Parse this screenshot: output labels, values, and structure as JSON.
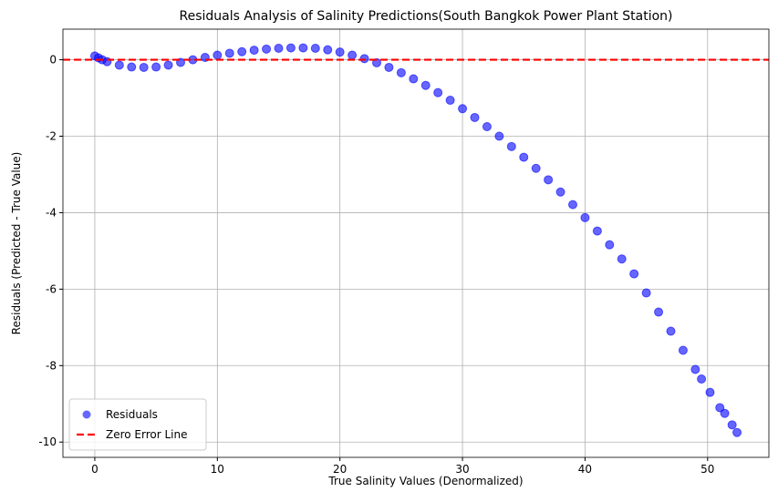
{
  "chart_data": {
    "type": "scatter",
    "title": "Residuals Analysis of Salinity Predictions(South Bangkok Power Plant Station)",
    "x_label": "True Salinity Values (Denormalized)",
    "y_label": "Residuals (Predicted - True Value)",
    "xlim": [
      -2.6,
      55
    ],
    "ylim": [
      -10.4,
      0.8
    ],
    "xticks": [
      0,
      10,
      20,
      30,
      40,
      50
    ],
    "yticks": [
      -10,
      -8,
      -6,
      -4,
      -2,
      0
    ],
    "grid": true,
    "legend": "lower left",
    "series": [
      {
        "name": "Residuals",
        "color": "#0000ff",
        "x": [
          0,
          0.3,
          0.6,
          1,
          2,
          3,
          4,
          5,
          6,
          7,
          8,
          9,
          10,
          11,
          12,
          13,
          14,
          15,
          16,
          17,
          18,
          19,
          20,
          21,
          22,
          23,
          24,
          25,
          26,
          27,
          28,
          29,
          30,
          31,
          32,
          33,
          34,
          35,
          36,
          37,
          38,
          39,
          40,
          41,
          42,
          43,
          44,
          45,
          46,
          47,
          48,
          49,
          49.5,
          50.2,
          51,
          51.4,
          52,
          52.4
        ],
        "values": [
          0.1,
          0.05,
          0,
          -0.05,
          -0.14,
          -0.19,
          -0.2,
          -0.19,
          -0.14,
          -0.07,
          0,
          0.06,
          0.12,
          0.17,
          0.21,
          0.25,
          0.28,
          0.3,
          0.31,
          0.31,
          0.3,
          0.26,
          0.2,
          0.12,
          0.03,
          -0.08,
          -0.2,
          -0.34,
          -0.5,
          -0.67,
          -0.86,
          -1.06,
          -1.28,
          -1.51,
          -1.75,
          -2.0,
          -2.27,
          -2.55,
          -2.84,
          -3.14,
          -3.46,
          -3.79,
          -4.13,
          -4.48,
          -4.84,
          -5.21,
          -5.6,
          -6.1,
          -6.6,
          -7.1,
          -7.6,
          -8.1,
          -8.35,
          -8.7,
          -9.1,
          -9.25,
          -9.55,
          -9.75
        ]
      }
    ],
    "reference_line": {
      "name": "Zero Error Line",
      "value": 0,
      "color": "#ff0000"
    }
  }
}
